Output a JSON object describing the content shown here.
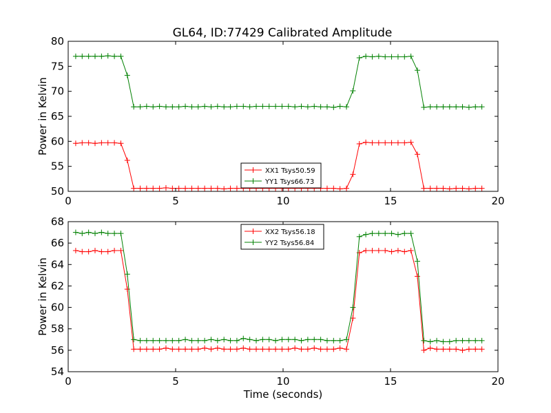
{
  "figure": {
    "title": "GL64, ID:77429 Calibrated Amplitude"
  },
  "chart_data": [
    {
      "type": "line",
      "title": "GL64, ID:77429 Calibrated Amplitude",
      "xlabel": "",
      "ylabel": "Power in Kelvin",
      "xlim": [
        0,
        20
      ],
      "ylim": [
        50,
        80
      ],
      "xticks": [
        0,
        5,
        10,
        15,
        20
      ],
      "yticks": [
        50,
        55,
        60,
        65,
        70,
        75,
        80
      ],
      "grid": false,
      "legend_position": "lower-center",
      "x": [
        0.35,
        0.65,
        0.95,
        1.25,
        1.55,
        1.85,
        2.15,
        2.45,
        2.75,
        3.05,
        3.35,
        3.65,
        3.95,
        4.25,
        4.55,
        4.85,
        5.15,
        5.45,
        5.75,
        6.05,
        6.35,
        6.65,
        6.95,
        7.25,
        7.55,
        7.85,
        8.15,
        8.45,
        8.75,
        9.05,
        9.35,
        9.65,
        9.95,
        10.25,
        10.55,
        10.85,
        11.15,
        11.45,
        11.75,
        12.05,
        12.35,
        12.65,
        12.95,
        13.25,
        13.55,
        13.85,
        14.15,
        14.45,
        14.75,
        15.05,
        15.35,
        15.65,
        15.95,
        16.25,
        16.55,
        16.85,
        17.15,
        17.45,
        17.75,
        18.05,
        18.35,
        18.65,
        18.95,
        19.25
      ],
      "series": [
        {
          "name": "XX1 Tsys50.59",
          "color": "#ff0000",
          "values": [
            59.6,
            59.7,
            59.7,
            59.6,
            59.7,
            59.7,
            59.7,
            59.6,
            56.2,
            50.6,
            50.6,
            50.6,
            50.6,
            50.6,
            50.7,
            50.6,
            50.6,
            50.6,
            50.6,
            50.6,
            50.6,
            50.6,
            50.6,
            50.5,
            50.6,
            50.6,
            50.6,
            50.6,
            50.6,
            50.6,
            50.6,
            50.6,
            50.6,
            50.6,
            50.6,
            50.6,
            50.6,
            50.6,
            50.6,
            50.6,
            50.6,
            50.5,
            50.6,
            53.4,
            59.5,
            59.8,
            59.7,
            59.7,
            59.7,
            59.7,
            59.7,
            59.7,
            59.8,
            57.4,
            50.6,
            50.6,
            50.6,
            50.6,
            50.5,
            50.6,
            50.6,
            50.5,
            50.6,
            50.6
          ]
        },
        {
          "name": "YY1 Tsys66.73",
          "color": "#008000",
          "values": [
            77.0,
            77.0,
            77.0,
            77.0,
            77.0,
            77.1,
            77.0,
            77.0,
            73.2,
            66.9,
            66.9,
            67.0,
            66.9,
            67.0,
            66.9,
            66.9,
            66.9,
            67.0,
            66.9,
            66.9,
            67.0,
            66.9,
            67.0,
            66.9,
            66.9,
            67.0,
            67.0,
            66.9,
            67.0,
            67.0,
            67.0,
            67.0,
            67.0,
            67.0,
            66.9,
            67.0,
            66.9,
            67.0,
            66.9,
            66.9,
            66.8,
            67.0,
            66.9,
            70.1,
            76.7,
            77.0,
            76.9,
            77.0,
            76.9,
            76.9,
            76.9,
            76.9,
            77.0,
            74.2,
            66.8,
            66.9,
            66.9,
            66.9,
            66.9,
            66.9,
            66.9,
            66.8,
            66.9,
            66.9
          ]
        }
      ]
    },
    {
      "type": "line",
      "title": "",
      "xlabel": "Time (seconds)",
      "ylabel": "Power in Kelvin",
      "xlim": [
        0,
        20
      ],
      "ylim": [
        54,
        68
      ],
      "xticks": [
        0,
        5,
        10,
        15,
        20
      ],
      "yticks": [
        54,
        56,
        58,
        60,
        62,
        64,
        66,
        68
      ],
      "grid": false,
      "legend_position": "upper-center",
      "x": [
        0.35,
        0.65,
        0.95,
        1.25,
        1.55,
        1.85,
        2.15,
        2.45,
        2.75,
        3.05,
        3.35,
        3.65,
        3.95,
        4.25,
        4.55,
        4.85,
        5.15,
        5.45,
        5.75,
        6.05,
        6.35,
        6.65,
        6.95,
        7.25,
        7.55,
        7.85,
        8.15,
        8.45,
        8.75,
        9.05,
        9.35,
        9.65,
        9.95,
        10.25,
        10.55,
        10.85,
        11.15,
        11.45,
        11.75,
        12.05,
        12.35,
        12.65,
        12.95,
        13.25,
        13.55,
        13.85,
        14.15,
        14.45,
        14.75,
        15.05,
        15.35,
        15.65,
        15.95,
        16.25,
        16.55,
        16.85,
        17.15,
        17.45,
        17.75,
        18.05,
        18.35,
        18.65,
        18.95,
        19.25
      ],
      "series": [
        {
          "name": "XX2 Tsys56.18",
          "color": "#ff0000",
          "values": [
            65.3,
            65.2,
            65.2,
            65.3,
            65.2,
            65.2,
            65.3,
            65.3,
            61.7,
            56.1,
            56.1,
            56.1,
            56.1,
            56.1,
            56.2,
            56.1,
            56.1,
            56.1,
            56.1,
            56.1,
            56.2,
            56.1,
            56.2,
            56.1,
            56.1,
            56.1,
            56.2,
            56.1,
            56.1,
            56.1,
            56.1,
            56.1,
            56.1,
            56.1,
            56.2,
            56.1,
            56.1,
            56.2,
            56.1,
            56.1,
            56.1,
            56.2,
            56.1,
            59.0,
            65.1,
            65.3,
            65.3,
            65.3,
            65.3,
            65.2,
            65.3,
            65.2,
            65.3,
            62.9,
            56.0,
            56.2,
            56.1,
            56.1,
            56.1,
            56.1,
            56.0,
            56.1,
            56.1,
            56.1
          ]
        },
        {
          "name": "YY2 Tsys56.84",
          "color": "#008000",
          "values": [
            67.0,
            66.9,
            67.0,
            66.9,
            67.0,
            66.9,
            66.9,
            66.9,
            63.1,
            57.0,
            56.9,
            56.9,
            56.9,
            56.9,
            56.9,
            56.9,
            56.9,
            57.0,
            56.9,
            56.9,
            56.9,
            57.0,
            56.9,
            57.0,
            56.9,
            56.9,
            57.1,
            57.0,
            56.9,
            57.0,
            57.0,
            56.9,
            57.0,
            57.0,
            57.0,
            56.9,
            57.0,
            57.0,
            57.0,
            56.9,
            56.9,
            56.9,
            57.0,
            60.0,
            66.6,
            66.8,
            66.9,
            66.9,
            66.9,
            66.9,
            66.8,
            66.9,
            66.9,
            64.3,
            56.9,
            56.8,
            56.9,
            56.8,
            56.8,
            56.9,
            56.9,
            56.9,
            56.9,
            56.9
          ]
        }
      ]
    }
  ]
}
